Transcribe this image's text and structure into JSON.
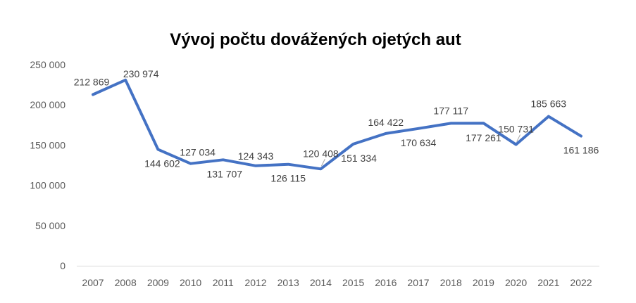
{
  "chart_data": {
    "type": "line",
    "title": "Vývoj počtu dovážených ojetých aut",
    "xlabel": "",
    "ylabel": "",
    "categories": [
      "2007",
      "2008",
      "2009",
      "2010",
      "2011",
      "2012",
      "2013",
      "2014",
      "2015",
      "2016",
      "2017",
      "2018",
      "2019",
      "2020",
      "2021",
      "2022"
    ],
    "series": [
      {
        "values": [
          212869,
          230974,
          144602,
          127034,
          131707,
          124343,
          126115,
          120408,
          151334,
          164422,
          170634,
          177117,
          177261,
          150731,
          185663,
          161186
        ],
        "labels": [
          "212 869",
          "230 974",
          "144 602",
          "127 034",
          "131 707",
          "124 343",
          "126 115",
          "120 408",
          "151 334",
          "164 422",
          "170 634",
          "177 117",
          "177 261",
          "150 731",
          "185 663",
          "161 186"
        ],
        "color": "#4472c4"
      }
    ],
    "yticks": [
      0,
      50000,
      100000,
      150000,
      200000,
      250000
    ],
    "ytick_labels": [
      "0",
      "50 000",
      "100 000",
      "150 000",
      "200 000",
      "250 000"
    ],
    "ylim": [
      0,
      250000
    ],
    "grid": false,
    "legend": "none"
  }
}
